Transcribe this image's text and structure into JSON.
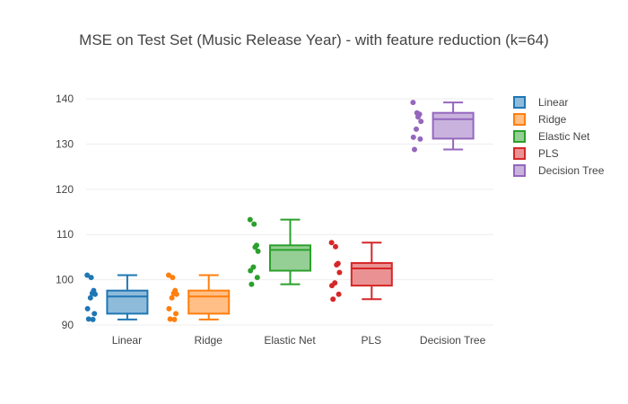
{
  "chart_data": {
    "type": "box",
    "title": "MSE on Test Set (Music Release Year) - with feature reduction (k=64)",
    "xlabel": "",
    "ylabel": "",
    "ylim": [
      89,
      142
    ],
    "yticks": [
      90,
      100,
      110,
      120,
      130,
      140
    ],
    "grid": true,
    "legend_position": "right",
    "categories": [
      "Linear",
      "Ridge",
      "Elastic Net",
      "PLS",
      "Decision Tree"
    ],
    "series": [
      {
        "name": "Linear",
        "color": "#1f77b4",
        "fill": "#8fbbda",
        "min": 91.2,
        "q1": 92.5,
        "median": 96.3,
        "q3": 97.6,
        "max": 101.0,
        "points": [
          101.0,
          100.5,
          97.6,
          97.0,
          96.8,
          96.0,
          93.6,
          92.5,
          91.3,
          91.2
        ]
      },
      {
        "name": "Ridge",
        "color": "#ff7f0e",
        "fill": "#ffbf86",
        "min": 91.2,
        "q1": 92.5,
        "median": 96.3,
        "q3": 97.6,
        "max": 101.0,
        "points": [
          101.0,
          100.5,
          97.6,
          97.0,
          96.8,
          96.0,
          93.6,
          92.5,
          91.3,
          91.2
        ]
      },
      {
        "name": "Elastic Net",
        "color": "#2ca02c",
        "fill": "#95cf95",
        "min": 99.0,
        "q1": 102.0,
        "median": 106.6,
        "q3": 107.6,
        "max": 113.3,
        "points": [
          113.3,
          112.3,
          107.6,
          107.2,
          106.3,
          102.8,
          102.0,
          100.5,
          99.0
        ]
      },
      {
        "name": "PLS",
        "color": "#d62728",
        "fill": "#ea9293",
        "min": 95.7,
        "q1": 98.7,
        "median": 102.5,
        "q3": 103.7,
        "max": 108.2,
        "points": [
          108.2,
          107.3,
          103.6,
          103.3,
          101.6,
          99.3,
          98.7,
          96.8,
          95.7
        ]
      },
      {
        "name": "Decision Tree",
        "color": "#9467bd",
        "fill": "#c9b3de",
        "min": 128.8,
        "q1": 131.2,
        "median": 135.5,
        "q3": 136.9,
        "max": 139.2,
        "points": [
          139.2,
          136.9,
          136.6,
          136.0,
          135.0,
          133.3,
          131.5,
          131.1,
          128.8
        ]
      }
    ]
  }
}
